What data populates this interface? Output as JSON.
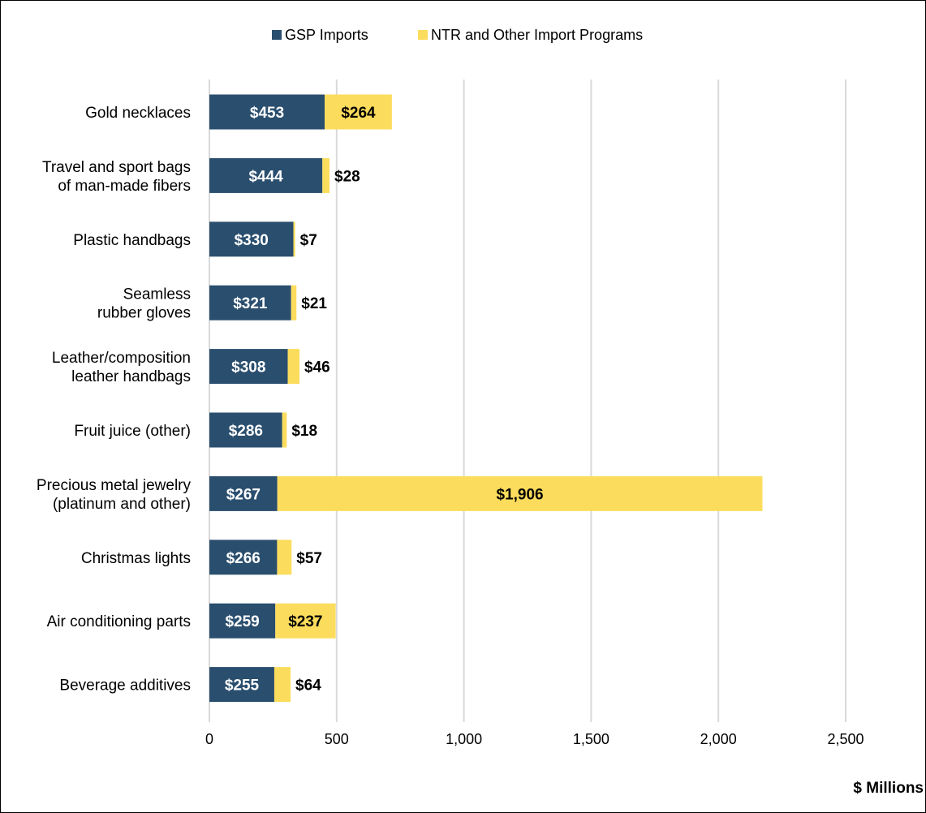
{
  "chart_data": {
    "type": "bar",
    "orientation": "horizontal",
    "stacked": true,
    "title": "",
    "xlabel": "$ Millions",
    "ylabel": "",
    "xlim": [
      0,
      2800
    ],
    "xticks": [
      0,
      500,
      1000,
      1500,
      2000,
      2500
    ],
    "xtick_labels": [
      "0",
      "500",
      "1,000",
      "1,500",
      "2,000",
      "2,500"
    ],
    "grid": true,
    "legend_position": "top",
    "categories": [
      [
        "Gold necklaces"
      ],
      [
        "Travel and sport bags",
        "of man-made fibers"
      ],
      [
        "Plastic handbags"
      ],
      [
        "Seamless",
        "rubber gloves"
      ],
      [
        "Leather/composition",
        "leather handbags"
      ],
      [
        "Fruit juice (other)"
      ],
      [
        "Precious metal jewelry",
        "(platinum and other)"
      ],
      [
        "Christmas lights"
      ],
      [
        "Air conditioning parts"
      ],
      [
        "Beverage additives"
      ]
    ],
    "series": [
      {
        "name": "GSP Imports",
        "color": "#2a4e6e",
        "values": [
          453,
          444,
          330,
          321,
          308,
          286,
          267,
          266,
          259,
          255
        ],
        "labels": [
          "$453",
          "$444",
          "$330",
          "$321",
          "$308",
          "$286",
          "$267",
          "$266",
          "$259",
          "$255"
        ]
      },
      {
        "name": "NTR and Other Import Programs",
        "color": "#fcdc5c",
        "values": [
          264,
          28,
          7,
          21,
          46,
          18,
          1906,
          57,
          237,
          64
        ],
        "labels": [
          "$264",
          "$28",
          "$7",
          "$21",
          "$46",
          "$18",
          "$1,906",
          "$57",
          "$237",
          "$64"
        ]
      }
    ]
  }
}
